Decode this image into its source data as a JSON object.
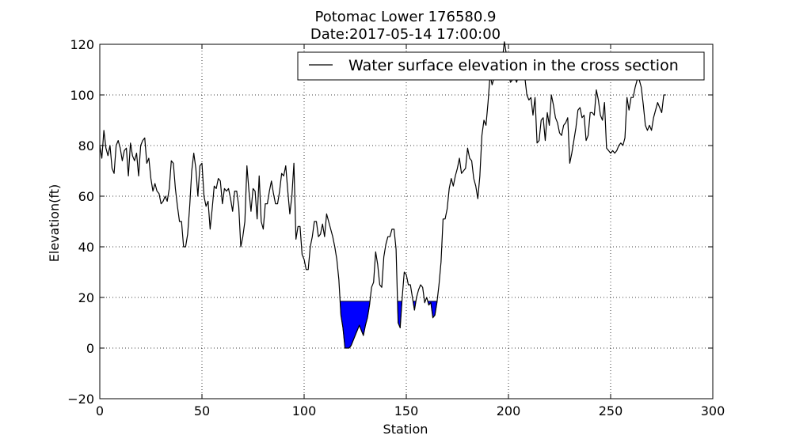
{
  "chart_data": {
    "type": "line",
    "title": "Potomac Lower 176580.9",
    "subtitle": "Date:2017-05-14 17:00:00",
    "xlabel": "Station",
    "ylabel": "Elevation(ft)",
    "xlim": [
      0,
      300
    ],
    "ylim": [
      -20,
      120
    ],
    "xticks": [
      0,
      50,
      100,
      150,
      200,
      250,
      300
    ],
    "yticks": [
      -20,
      0,
      20,
      40,
      60,
      80,
      100,
      120
    ],
    "xtick_labels": [
      "0",
      "50",
      "100",
      "150",
      "200",
      "250",
      "300"
    ],
    "ytick_labels": [
      "−20",
      "0",
      "20",
      "40",
      "60",
      "80",
      "100",
      "120"
    ],
    "grid": true,
    "legend_position": "top-right",
    "water_level": 18.5,
    "fill_color": "#0000ff",
    "line_color": "#000000",
    "series": [
      {
        "name": "Water surface elevation in the cross section",
        "x": [
          0,
          1,
          2,
          3,
          4,
          5,
          6,
          7,
          8,
          9,
          10,
          11,
          12,
          13,
          14,
          15,
          16,
          17,
          18,
          19,
          20,
          21,
          22,
          23,
          24,
          25,
          26,
          27,
          28,
          29,
          30,
          31,
          32,
          33,
          34,
          35,
          36,
          37,
          38,
          39,
          40,
          41,
          42,
          43,
          44,
          45,
          46,
          47,
          48,
          49,
          50,
          51,
          52,
          53,
          54,
          55,
          56,
          57,
          58,
          59,
          60,
          61,
          62,
          63,
          64,
          65,
          66,
          67,
          68,
          69,
          70,
          71,
          72,
          73,
          74,
          75,
          76,
          77,
          78,
          79,
          80,
          81,
          82,
          83,
          84,
          85,
          86,
          87,
          88,
          89,
          90,
          91,
          92,
          93,
          94,
          95,
          96,
          97,
          98,
          99,
          100,
          101,
          102,
          103,
          104,
          105,
          106,
          107,
          108,
          109,
          110,
          111,
          112,
          113,
          114,
          115,
          116,
          117,
          118,
          119,
          120,
          121,
          122,
          123,
          124,
          125,
          126,
          127,
          128,
          129,
          130,
          131,
          132,
          133,
          134,
          135,
          136,
          137,
          138,
          139,
          140,
          141,
          142,
          143,
          144,
          145,
          146,
          147,
          148,
          149,
          150,
          151,
          152,
          153,
          154,
          155,
          156,
          157,
          158,
          159,
          160,
          161,
          162,
          163,
          164,
          165,
          166,
          167,
          168,
          169,
          170,
          171,
          172,
          173,
          174,
          175,
          176,
          177,
          178,
          179,
          180,
          181,
          182,
          183,
          184,
          185,
          186,
          187,
          188,
          189,
          190,
          191,
          192,
          193,
          194,
          195,
          196,
          197,
          198,
          199,
          200,
          201,
          202,
          203,
          204,
          205,
          206,
          207,
          208,
          209,
          210,
          211,
          212,
          213,
          214,
          215,
          216,
          217,
          218,
          219,
          220,
          221,
          222,
          223,
          224,
          225,
          226,
          227,
          228,
          229,
          230,
          231,
          232,
          233,
          234,
          235,
          236,
          237,
          238,
          239,
          240,
          241,
          242,
          243,
          244,
          245,
          246,
          247,
          248,
          249,
          250,
          251,
          252,
          253,
          254,
          255,
          256,
          257,
          258,
          259,
          260,
          261,
          262,
          263,
          264,
          265,
          266,
          267,
          268,
          269,
          270,
          271,
          272,
          273,
          274,
          275,
          276,
          277
        ],
        "y": [
          80,
          75,
          86,
          79,
          76,
          80,
          71,
          69,
          80,
          82,
          79,
          74,
          78,
          79,
          68,
          81,
          76,
          74,
          77,
          68,
          80,
          82,
          83,
          73,
          75,
          67,
          62,
          65,
          62,
          61,
          57,
          58,
          60,
          58,
          63,
          74,
          73,
          63,
          56,
          50,
          50,
          40,
          40,
          45,
          56,
          70,
          77,
          71,
          60,
          72,
          73,
          60,
          56,
          58,
          47,
          55,
          64,
          63,
          67,
          66,
          57,
          63,
          62,
          63,
          59,
          54,
          62,
          62,
          56,
          40,
          44,
          50,
          72,
          62,
          54,
          63,
          62,
          51,
          68,
          50,
          47,
          57,
          57,
          62,
          66,
          61,
          57,
          57,
          62,
          69,
          68,
          72,
          62,
          53,
          60,
          73,
          43,
          48,
          48,
          37,
          35,
          31,
          31,
          40,
          44,
          50,
          50,
          44,
          45,
          49,
          44,
          53,
          50,
          47,
          44,
          40,
          35,
          27,
          13,
          8,
          0,
          0,
          0,
          1,
          3,
          5,
          7,
          9,
          7,
          5,
          9,
          12,
          17,
          24,
          26,
          38,
          33,
          25,
          24,
          36,
          41,
          44,
          44,
          47,
          47,
          39,
          10,
          8,
          20,
          30,
          29,
          25,
          25,
          20,
          15,
          20,
          23,
          25,
          24,
          18,
          20,
          17,
          18,
          12,
          13,
          18,
          25,
          34,
          51,
          51,
          55,
          63,
          67,
          64,
          68,
          71,
          75,
          69,
          70,
          71,
          79,
          75,
          74,
          67,
          64,
          59,
          68,
          84,
          90,
          88,
          97,
          108,
          104,
          107,
          108,
          110,
          112,
          114,
          121,
          116,
          108,
          105,
          106,
          107,
          105,
          108,
          109,
          110,
          107,
          100,
          98,
          99,
          92,
          99,
          81,
          82,
          90,
          91,
          82,
          93,
          88,
          100,
          96,
          91,
          89,
          85,
          84,
          88,
          89,
          91,
          73,
          77,
          82,
          87,
          94,
          95,
          91,
          92,
          82,
          84,
          93,
          93,
          92,
          102,
          98,
          92,
          90,
          97,
          79,
          78,
          77,
          78,
          77,
          78,
          80,
          81,
          80,
          83,
          99,
          94,
          99,
          99,
          103,
          106,
          106,
          103,
          96,
          88,
          86,
          88,
          86,
          91,
          94,
          97,
          95,
          93,
          100,
          100
        ]
      }
    ]
  }
}
